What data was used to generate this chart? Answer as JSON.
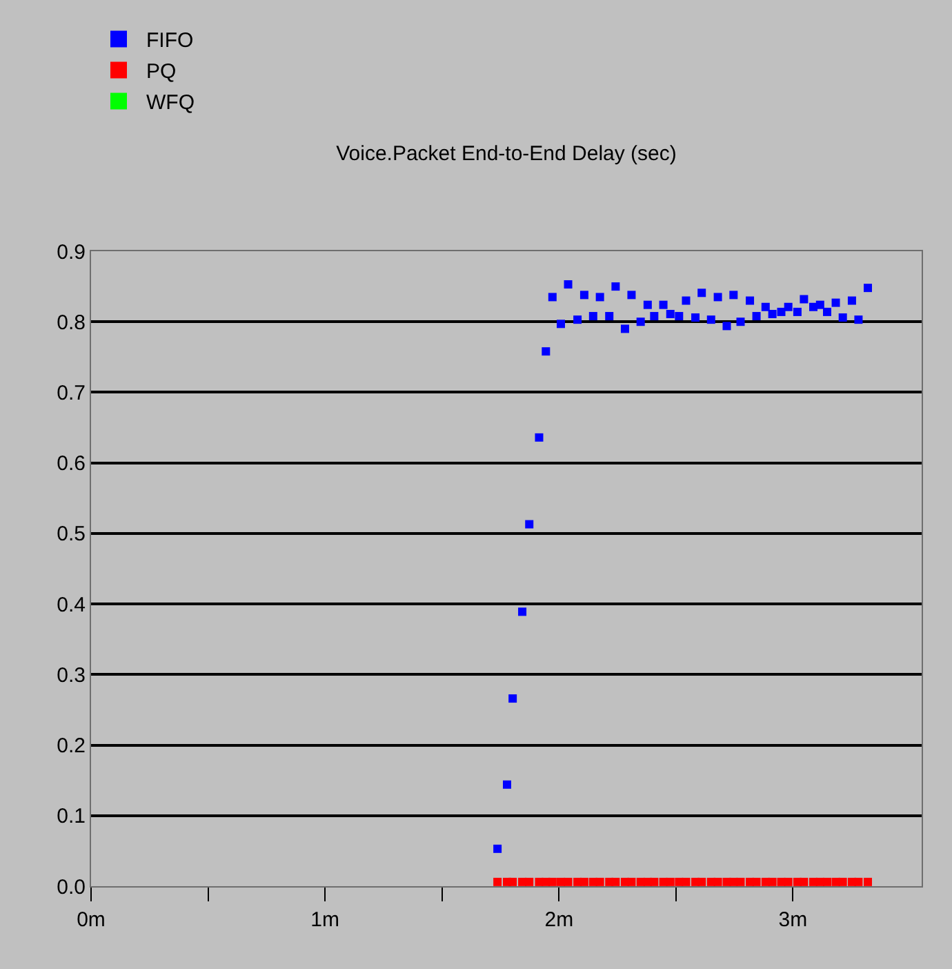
{
  "chart_data": {
    "type": "scatter",
    "title": "Voice.Packet End-to-End Delay (sec)",
    "x": [
      1.737,
      1.778,
      1.802,
      1.843,
      1.873,
      1.915,
      1.944,
      1.972,
      2.008,
      2.039,
      2.079,
      2.108,
      2.146,
      2.175,
      2.215,
      2.242,
      2.282,
      2.31,
      2.349,
      2.379,
      2.407,
      2.446,
      2.476,
      2.513,
      2.543,
      2.583,
      2.61,
      2.65,
      2.679,
      2.717,
      2.746,
      2.776,
      2.816,
      2.844,
      2.883,
      2.912,
      2.95,
      2.98,
      3.019,
      3.047,
      3.087,
      3.116,
      3.146,
      3.183,
      3.213,
      3.252,
      3.28,
      3.32
    ],
    "series": [
      {
        "name": "FIFO",
        "color": "#0000ff",
        "values": [
          0.053,
          0.144,
          0.266,
          0.389,
          0.513,
          0.636,
          0.758,
          0.835,
          0.797,
          0.853,
          0.803,
          0.838,
          0.808,
          0.835,
          0.808,
          0.85,
          0.79,
          0.838,
          0.8,
          0.824,
          0.808,
          0.824,
          0.811,
          0.808,
          0.83,
          0.806,
          0.841,
          0.803,
          0.835,
          0.794,
          0.838,
          0.8,
          0.83,
          0.808,
          0.821,
          0.811,
          0.814,
          0.821,
          0.814,
          0.832,
          0.821,
          0.824,
          0.814,
          0.827,
          0.806,
          0.83,
          0.803,
          0.848
        ]
      },
      {
        "name": "PQ",
        "color": "#ff0000",
        "values": [
          0.006,
          0.006,
          0.006,
          0.006,
          0.006,
          0.006,
          0.006,
          0.006,
          0.006,
          0.006,
          0.006,
          0.006,
          0.006,
          0.006,
          0.006,
          0.006,
          0.006,
          0.006,
          0.006,
          0.006,
          0.006,
          0.006,
          0.006,
          0.006,
          0.006,
          0.006,
          0.006,
          0.006,
          0.006,
          0.006,
          0.006,
          0.006,
          0.006,
          0.006,
          0.006,
          0.006,
          0.006,
          0.006,
          0.006,
          0.006,
          0.006,
          0.006,
          0.006,
          0.006,
          0.006,
          0.006,
          0.006,
          0.006
        ]
      },
      {
        "name": "WFQ",
        "color": "#00ff00",
        "values": [
          null,
          null,
          null,
          null,
          null,
          null,
          null,
          null,
          null,
          null,
          null,
          null,
          null,
          null,
          null,
          null,
          null,
          null,
          null,
          null,
          null,
          null,
          null,
          null,
          null,
          null,
          null,
          null,
          null,
          null,
          null,
          null,
          null,
          null,
          null,
          null,
          null,
          null,
          null,
          null,
          null,
          null,
          null,
          null,
          null,
          null,
          null,
          null
        ]
      }
    ],
    "xlim": [
      0,
      3.55
    ],
    "xticks": [
      {
        "value": 0,
        "label": "0m"
      },
      {
        "value": 0.5,
        "label": null
      },
      {
        "value": 1,
        "label": "1m"
      },
      {
        "value": 1.5,
        "label": null
      },
      {
        "value": 2,
        "label": "2m"
      },
      {
        "value": 2.5,
        "label": null
      },
      {
        "value": 3,
        "label": "3m"
      }
    ],
    "ylim": [
      0,
      0.9
    ],
    "yticks": [
      {
        "value": 0,
        "label": "0.0"
      },
      0.1,
      0.2,
      0.3,
      0.4,
      0.5,
      0.6,
      0.7,
      0.8,
      0.9
    ],
    "grid": "y",
    "legend": "top left",
    "marker": "square"
  }
}
